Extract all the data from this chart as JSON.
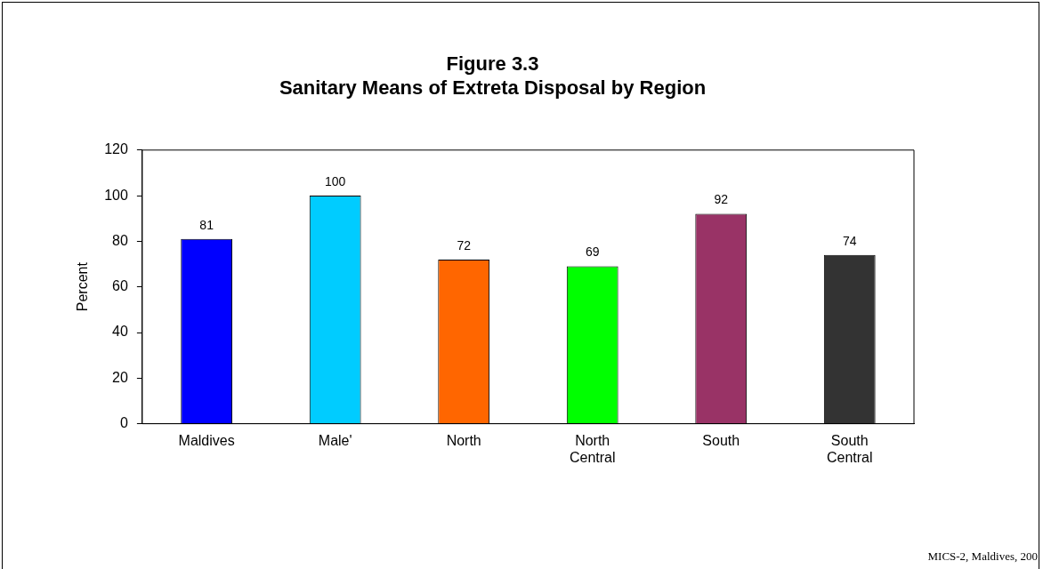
{
  "chart_data": {
    "type": "bar",
    "title": "Figure 3.3",
    "subtitle": "Sanitary Means of Extreta Disposal by Region",
    "ylabel": "Percent",
    "categories": [
      "Maldives",
      "Male'",
      "North",
      "North Central",
      "South",
      "South Central"
    ],
    "values": [
      81,
      100,
      72,
      69,
      92,
      74
    ],
    "colors": [
      "#0000ff",
      "#00ccff",
      "#ff6600",
      "#00ff00",
      "#993366",
      "#333333"
    ],
    "ylim": [
      0,
      120
    ],
    "yticks": [
      0,
      20,
      40,
      60,
      80,
      100,
      120
    ],
    "grid": false,
    "legend": false,
    "data_labels": true,
    "annotations": [
      "MICS-2, Maldives, 200"
    ]
  }
}
